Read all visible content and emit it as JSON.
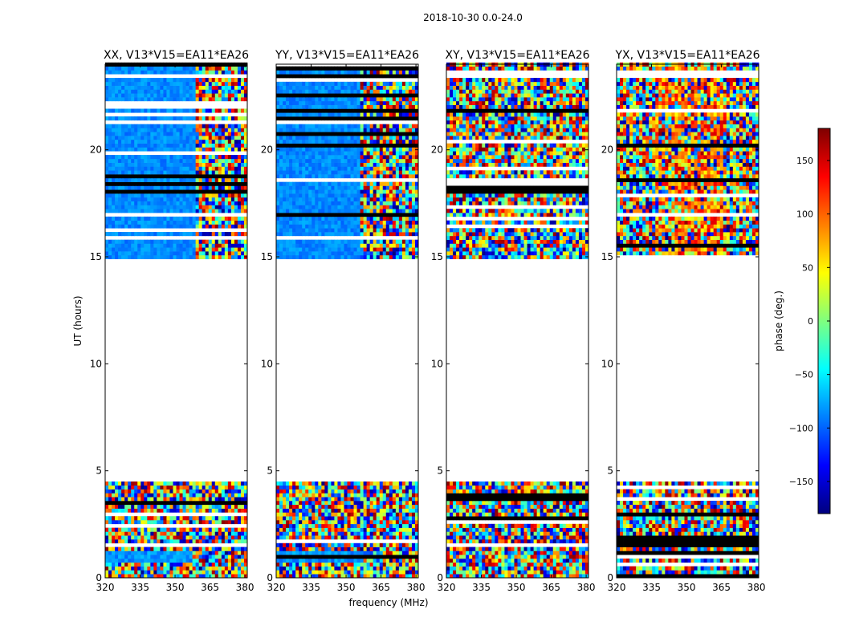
{
  "figure_title": "2018-10-30 0.0-24.0",
  "colors": {
    "jet": [
      "#00007f",
      "#0000ff",
      "#007fff",
      "#00ffff",
      "#7fff7f",
      "#ffff00",
      "#ff7f00",
      "#ff0000",
      "#7f0000"
    ],
    "background": "#ffffff",
    "axis": "#000000"
  },
  "chart_data": [
    {
      "type": "heatmap",
      "title": "XX, V13*V15=EA11*EA26",
      "xlabel": "",
      "ylabel": "UT (hours)",
      "xlim": [
        320,
        381
      ],
      "ylim": [
        0,
        24
      ],
      "xticks": [
        320,
        335,
        350,
        365,
        380
      ],
      "yticks": [
        0,
        5,
        10,
        15,
        20
      ],
      "xtick_labels": [
        "320",
        "335",
        "350",
        "365",
        "380"
      ],
      "ytick_labels": [
        "0",
        "5",
        "10",
        "15",
        "20"
      ],
      "data_ranges_hours": [
        [
          0,
          4.5
        ],
        [
          14.9,
          24
        ]
      ],
      "pattern": "smooth blue phase below ~362 MHz with fringing above; noisy 0-4.5 h"
    },
    {
      "type": "heatmap",
      "title": "YY, V13*V15=EA11*EA26",
      "xlabel": "frequency (MHz)",
      "ylabel": "",
      "xlim": [
        320,
        381
      ],
      "ylim": [
        0,
        24
      ],
      "xticks": [
        320,
        335,
        350,
        365,
        380
      ],
      "yticks": [
        0,
        5,
        10,
        15,
        20
      ],
      "xtick_labels": [
        "320",
        "335",
        "350",
        "365",
        "380"
      ],
      "ytick_labels": [
        "0",
        "5",
        "10",
        "15",
        "20"
      ],
      "data_ranges_hours": [
        [
          0,
          4.5
        ],
        [
          14.9,
          24
        ]
      ],
      "pattern": "smooth blue phase below ~360 MHz with fringing above; noisy 0-4.5 h"
    },
    {
      "type": "heatmap",
      "title": "XY, V13*V15=EA11*EA26",
      "xlabel": "",
      "ylabel": "",
      "xlim": [
        320,
        381
      ],
      "ylim": [
        0,
        24
      ],
      "xticks": [
        320,
        335,
        350,
        365,
        380
      ],
      "yticks": [
        0,
        5,
        10,
        15,
        20
      ],
      "xtick_labels": [
        "320",
        "335",
        "350",
        "365",
        "380"
      ],
      "ytick_labels": [
        "0",
        "5",
        "10",
        "15",
        "20"
      ],
      "data_ranges_hours": [
        [
          0,
          4.5
        ],
        [
          14.9,
          24
        ]
      ],
      "pattern": "noisy phase wrapping across full band"
    },
    {
      "type": "heatmap",
      "title": "YX, V13*V15=EA11*EA26",
      "xlabel": "",
      "ylabel": "",
      "xlim": [
        320,
        381
      ],
      "ylim": [
        0,
        24
      ],
      "xticks": [
        320,
        335,
        350,
        365,
        380
      ],
      "yticks": [
        0,
        5,
        10,
        15,
        20
      ],
      "xtick_labels": [
        "320",
        "335",
        "350",
        "365",
        "380"
      ],
      "ytick_labels": [
        "0",
        "5",
        "10",
        "15",
        "20"
      ],
      "data_ranges_hours": [
        [
          0,
          4.5
        ],
        [
          14.9,
          24
        ]
      ],
      "pattern": "noisy phase, orange-red dominated mid band"
    },
    {
      "type": "colorbar",
      "label": "phase (deg.)",
      "range": [
        -180,
        180
      ],
      "ticks": [
        -150,
        -100,
        -50,
        0,
        50,
        100,
        150
      ],
      "tick_labels": [
        "−150",
        "−100",
        "−50",
        "0",
        "50",
        "100",
        "150"
      ],
      "colormap": "jet"
    }
  ]
}
